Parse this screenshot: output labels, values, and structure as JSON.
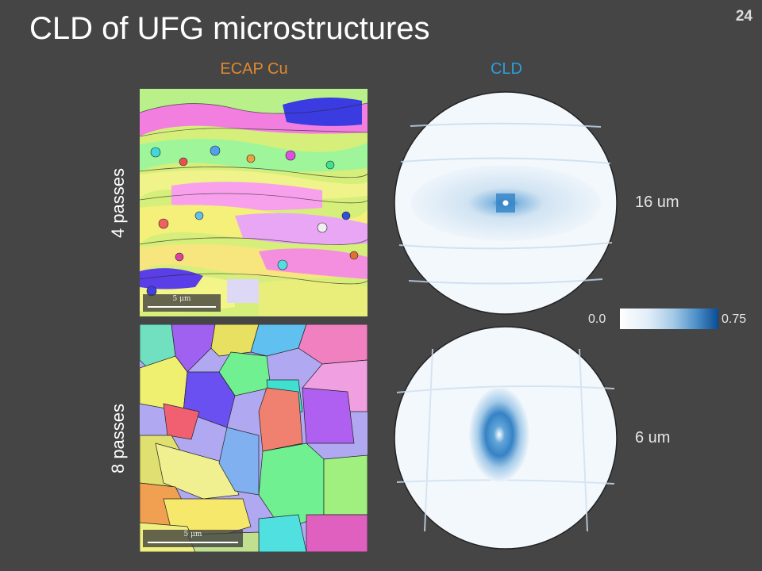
{
  "slide": {
    "title": "CLD of UFG microstructures",
    "page_number": "24"
  },
  "columns": {
    "ecap": {
      "label": "ECAP Cu",
      "color": "#e0892e"
    },
    "cld": {
      "label": "CLD",
      "color": "#2a9fde"
    }
  },
  "rows": [
    {
      "label": "4 passes",
      "scale_bar": "5 μm",
      "cld_size": "16 um"
    },
    {
      "label": "8 passes",
      "scale_bar": "5 μm",
      "cld_size": "6 um"
    }
  ],
  "colorbar": {
    "min": "0.0",
    "max": "0.75",
    "colors": [
      "#ffffff",
      "#0b4b93"
    ]
  }
}
